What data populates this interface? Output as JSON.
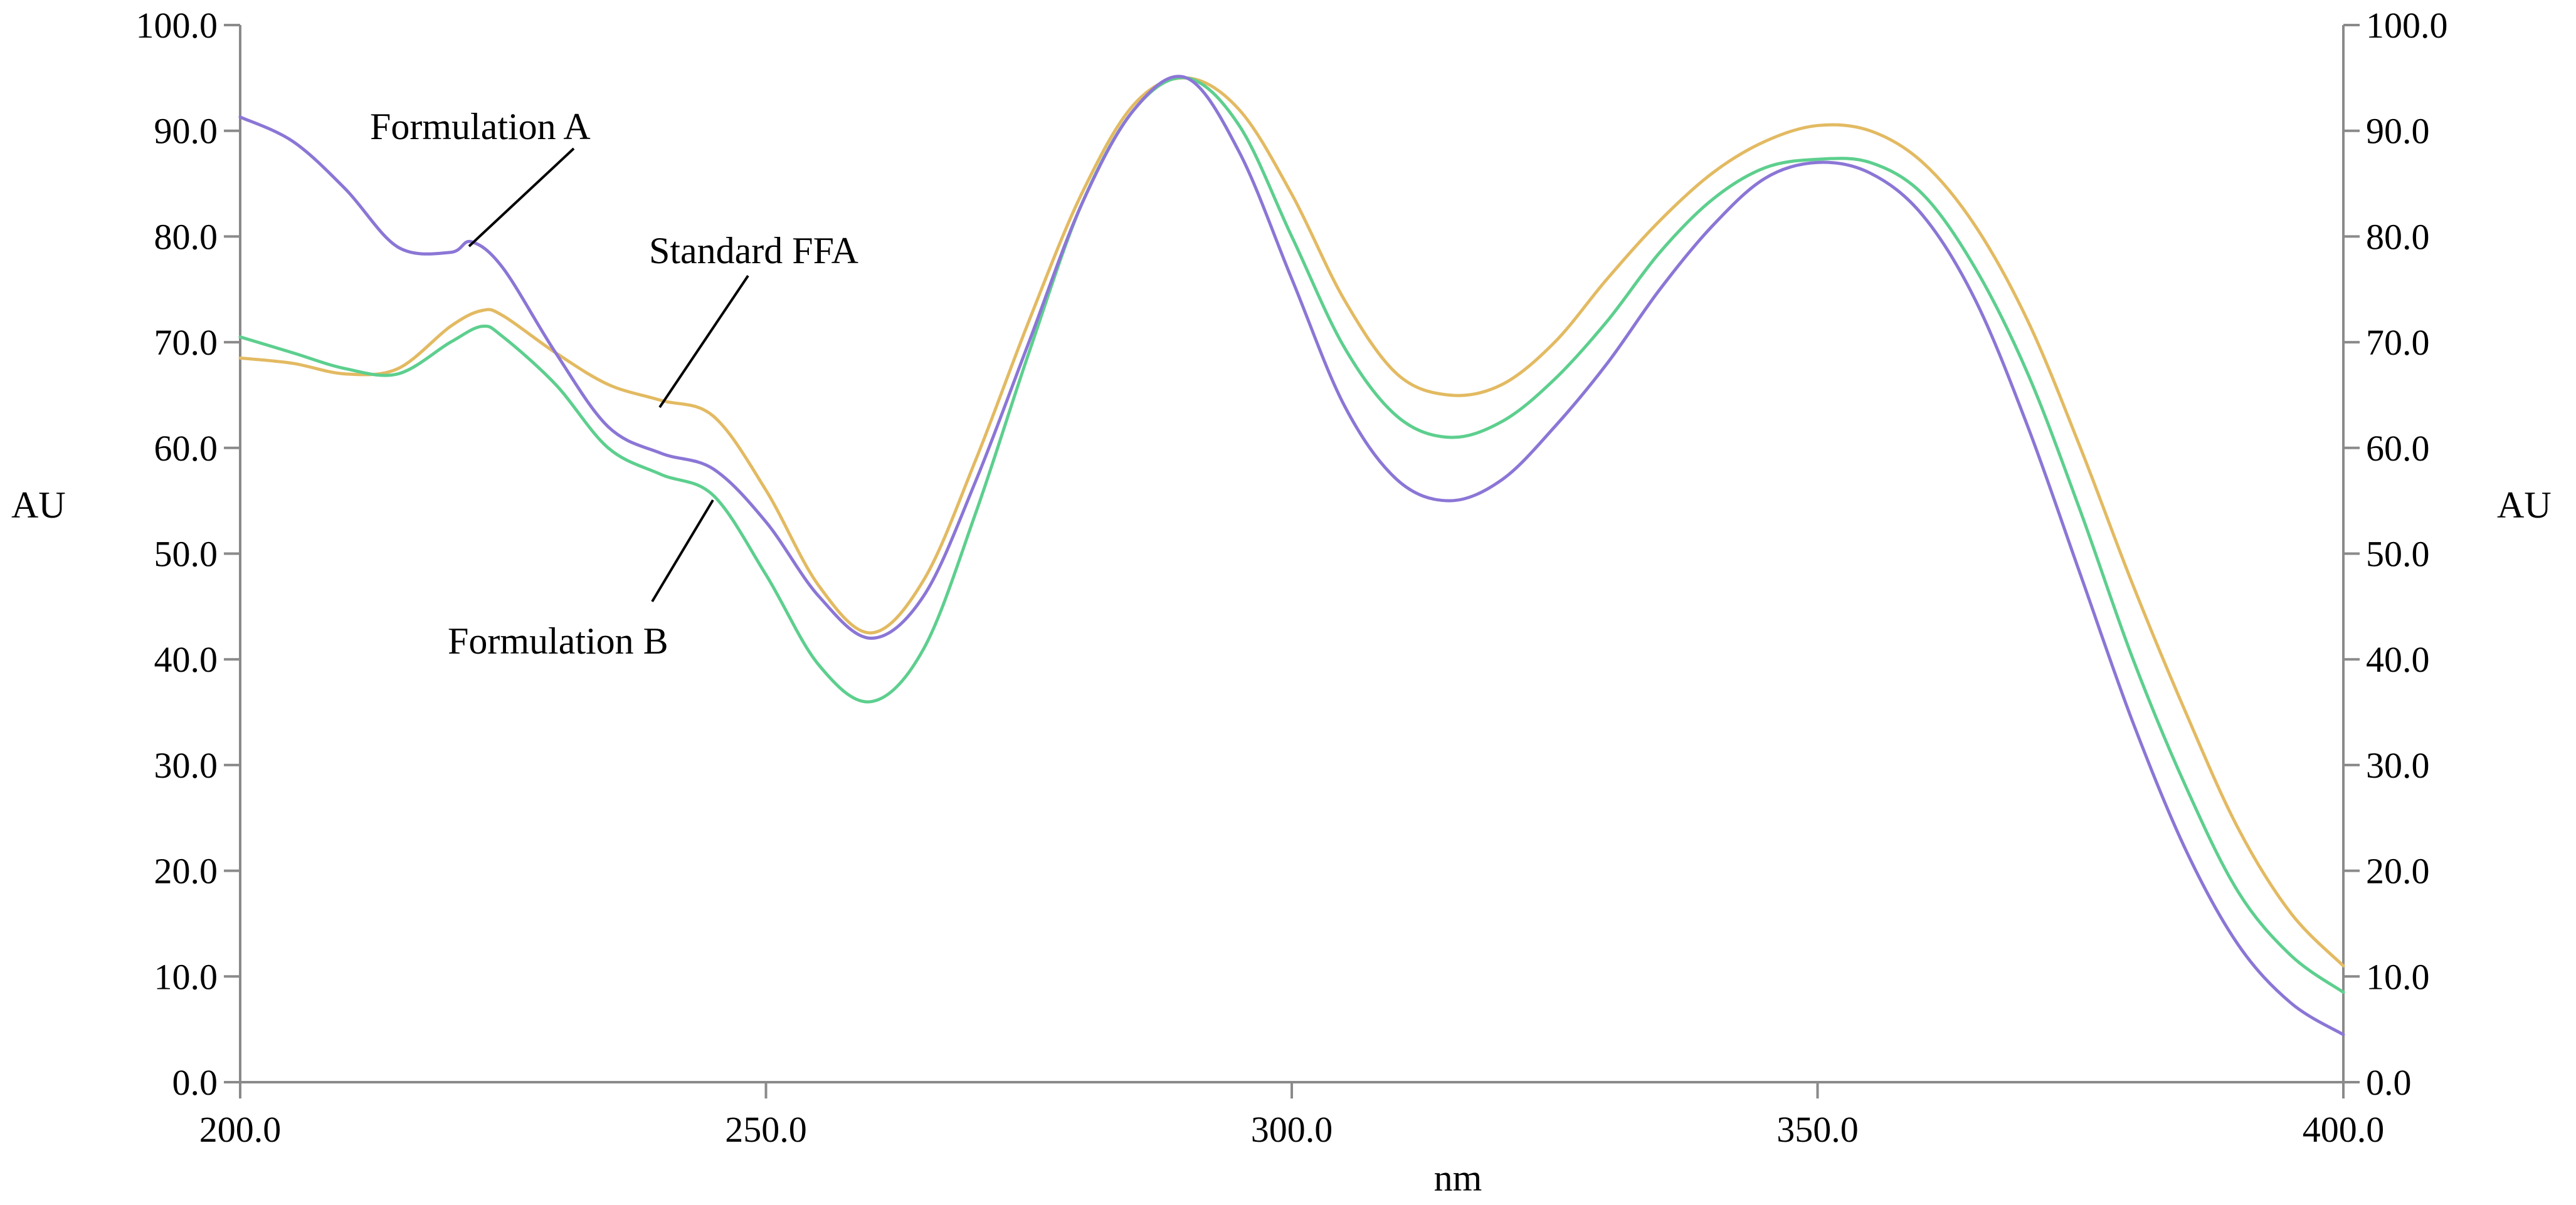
{
  "chart_data": {
    "type": "line",
    "title": "",
    "xlabel": "nm",
    "ylabel": "AU",
    "ylabel_right": "AU",
    "xlim": [
      200,
      400
    ],
    "ylim": [
      0,
      100
    ],
    "x_ticks": [
      200,
      250,
      300,
      350,
      400
    ],
    "x_tick_labels": [
      "200.0",
      "250.0",
      "300.0",
      "350.0",
      "400.0"
    ],
    "y_ticks": [
      0,
      10,
      20,
      30,
      40,
      50,
      60,
      70,
      80,
      90,
      100
    ],
    "y_tick_labels": [
      "0.0",
      "10.0",
      "20.0",
      "30.0",
      "40.0",
      "50.0",
      "60.0",
      "70.0",
      "80.0",
      "90.0",
      "100.0"
    ],
    "grid": false,
    "legend": "none",
    "series": [
      {
        "name": "Formulation A",
        "color": "#8b76d6",
        "points": [
          [
            200,
            91.3
          ],
          [
            205,
            89.0
          ],
          [
            210,
            84.5
          ],
          [
            215,
            79.0
          ],
          [
            220,
            78.5
          ],
          [
            222,
            79.5
          ],
          [
            225,
            77.0
          ],
          [
            230,
            69.0
          ],
          [
            235,
            62.0
          ],
          [
            240,
            59.5
          ],
          [
            245,
            58.0
          ],
          [
            250,
            53.0
          ],
          [
            255,
            46.0
          ],
          [
            260,
            42.0
          ],
          [
            265,
            46.0
          ],
          [
            270,
            57.0
          ],
          [
            275,
            70.0
          ],
          [
            280,
            83.0
          ],
          [
            285,
            92.0
          ],
          [
            290,
            95.0
          ],
          [
            295,
            88.0
          ],
          [
            300,
            76.0
          ],
          [
            305,
            64.0
          ],
          [
            310,
            57.0
          ],
          [
            315,
            55.0
          ],
          [
            320,
            57.0
          ],
          [
            325,
            62.0
          ],
          [
            330,
            68.0
          ],
          [
            335,
            75.0
          ],
          [
            340,
            81.0
          ],
          [
            345,
            85.5
          ],
          [
            350,
            87.0
          ],
          [
            355,
            86.0
          ],
          [
            360,
            82.0
          ],
          [
            365,
            74.0
          ],
          [
            370,
            62.0
          ],
          [
            375,
            48.0
          ],
          [
            380,
            34.0
          ],
          [
            385,
            22.0
          ],
          [
            390,
            13.0
          ],
          [
            395,
            7.5
          ],
          [
            400,
            4.5
          ]
        ]
      },
      {
        "name": "Standard FFA",
        "color": "#e3ba62",
        "points": [
          [
            200,
            68.5
          ],
          [
            205,
            68.0
          ],
          [
            210,
            67.0
          ],
          [
            215,
            67.5
          ],
          [
            220,
            71.5
          ],
          [
            223,
            73.0
          ],
          [
            225,
            72.5
          ],
          [
            230,
            69.0
          ],
          [
            235,
            66.0
          ],
          [
            240,
            64.5
          ],
          [
            245,
            63.0
          ],
          [
            250,
            56.0
          ],
          [
            255,
            47.0
          ],
          [
            260,
            42.5
          ],
          [
            265,
            47.5
          ],
          [
            270,
            59.0
          ],
          [
            275,
            72.0
          ],
          [
            280,
            84.0
          ],
          [
            285,
            92.5
          ],
          [
            290,
            95.0
          ],
          [
            295,
            92.0
          ],
          [
            300,
            84.0
          ],
          [
            305,
            74.0
          ],
          [
            310,
            67.0
          ],
          [
            315,
            65.0
          ],
          [
            320,
            66.0
          ],
          [
            325,
            70.0
          ],
          [
            330,
            76.0
          ],
          [
            335,
            81.5
          ],
          [
            340,
            86.0
          ],
          [
            345,
            89.0
          ],
          [
            350,
            90.5
          ],
          [
            355,
            90.0
          ],
          [
            360,
            87.0
          ],
          [
            365,
            81.0
          ],
          [
            370,
            72.0
          ],
          [
            375,
            60.0
          ],
          [
            380,
            47.0
          ],
          [
            385,
            35.0
          ],
          [
            390,
            24.0
          ],
          [
            395,
            16.0
          ],
          [
            400,
            11.0
          ]
        ]
      },
      {
        "name": "Formulation B",
        "color": "#5dcf8e",
        "points": [
          [
            200,
            70.5
          ],
          [
            205,
            69.0
          ],
          [
            210,
            67.5
          ],
          [
            215,
            67.0
          ],
          [
            220,
            70.0
          ],
          [
            223,
            71.5
          ],
          [
            225,
            70.5
          ],
          [
            230,
            66.0
          ],
          [
            235,
            60.0
          ],
          [
            240,
            57.5
          ],
          [
            245,
            55.5
          ],
          [
            250,
            48.0
          ],
          [
            255,
            39.5
          ],
          [
            260,
            36.0
          ],
          [
            265,
            41.0
          ],
          [
            270,
            54.0
          ],
          [
            275,
            69.0
          ],
          [
            280,
            83.0
          ],
          [
            285,
            92.0
          ],
          [
            290,
            95.0
          ],
          [
            295,
            90.5
          ],
          [
            300,
            80.0
          ],
          [
            305,
            69.5
          ],
          [
            310,
            63.0
          ],
          [
            315,
            61.0
          ],
          [
            320,
            62.5
          ],
          [
            325,
            66.5
          ],
          [
            330,
            72.0
          ],
          [
            335,
            78.5
          ],
          [
            340,
            83.5
          ],
          [
            345,
            86.5
          ],
          [
            350,
            87.3
          ],
          [
            355,
            87.0
          ],
          [
            360,
            84.0
          ],
          [
            365,
            77.0
          ],
          [
            370,
            67.0
          ],
          [
            375,
            54.0
          ],
          [
            380,
            40.0
          ],
          [
            385,
            28.0
          ],
          [
            390,
            18.0
          ],
          [
            395,
            12.0
          ],
          [
            400,
            8.5
          ]
        ]
      }
    ],
    "annotations": [
      {
        "text": "Formulation A",
        "points_to": [
          222,
          79.5
        ]
      },
      {
        "text": "Standard FFA",
        "points_to": [
          243,
          63.5
        ]
      },
      {
        "text": "Formulation B",
        "points_to": [
          244,
          55.5
        ]
      }
    ]
  }
}
